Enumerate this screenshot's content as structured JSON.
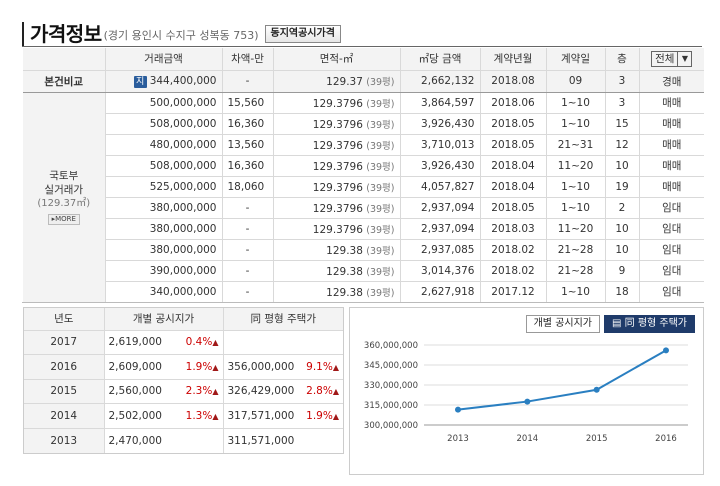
{
  "header": {
    "title": "가격정보",
    "address": "(경기 용인시 수지구 성복동 753)",
    "nearby_button": "동지역공시가격"
  },
  "main_table": {
    "columns": [
      "거래금액",
      "차액-만",
      "면적-㎡",
      "㎡당 금액",
      "계약년월",
      "계약일",
      "층"
    ],
    "filter_value": "전체",
    "subject_row": {
      "label": "본건비교",
      "badge": "지",
      "amount": "344,400,000",
      "diff": "-",
      "area": "129.37",
      "pyeong": "(39평)",
      "per_m2": "2,662,132",
      "ym": "2018.08",
      "day": "09",
      "floor": "3",
      "type": "경매"
    },
    "group_label_1": "국토부",
    "group_label_2": "실거래가",
    "group_area": "(129.37㎡)",
    "more_label": "MORE",
    "rows": [
      {
        "amount": "500,000,000",
        "diff": "15,560",
        "area": "129.3796",
        "pyeong": "(39평)",
        "per_m2": "3,864,597",
        "ym": "2018.06",
        "day": "1~10",
        "floor": "3",
        "type": "매매"
      },
      {
        "amount": "508,000,000",
        "diff": "16,360",
        "area": "129.3796",
        "pyeong": "(39평)",
        "per_m2": "3,926,430",
        "ym": "2018.05",
        "day": "1~10",
        "floor": "15",
        "type": "매매"
      },
      {
        "amount": "480,000,000",
        "diff": "13,560",
        "area": "129.3796",
        "pyeong": "(39평)",
        "per_m2": "3,710,013",
        "ym": "2018.05",
        "day": "21~31",
        "floor": "12",
        "type": "매매"
      },
      {
        "amount": "508,000,000",
        "diff": "16,360",
        "area": "129.3796",
        "pyeong": "(39평)",
        "per_m2": "3,926,430",
        "ym": "2018.04",
        "day": "11~20",
        "floor": "10",
        "type": "매매"
      },
      {
        "amount": "525,000,000",
        "diff": "18,060",
        "area": "129.3796",
        "pyeong": "(39평)",
        "per_m2": "4,057,827",
        "ym": "2018.04",
        "day": "1~10",
        "floor": "19",
        "type": "매매"
      },
      {
        "amount": "380,000,000",
        "diff": "-",
        "area": "129.3796",
        "pyeong": "(39평)",
        "per_m2": "2,937,094",
        "ym": "2018.05",
        "day": "1~10",
        "floor": "2",
        "type": "임대"
      },
      {
        "amount": "380,000,000",
        "diff": "-",
        "area": "129.3796",
        "pyeong": "(39평)",
        "per_m2": "2,937,094",
        "ym": "2018.03",
        "day": "11~20",
        "floor": "10",
        "type": "임대"
      },
      {
        "amount": "380,000,000",
        "diff": "-",
        "area": "129.38",
        "pyeong": "(39평)",
        "per_m2": "2,937,085",
        "ym": "2018.02",
        "day": "21~28",
        "floor": "10",
        "type": "임대"
      },
      {
        "amount": "390,000,000",
        "diff": "-",
        "area": "129.38",
        "pyeong": "(39평)",
        "per_m2": "3,014,376",
        "ym": "2018.02",
        "day": "21~28",
        "floor": "9",
        "type": "임대"
      },
      {
        "amount": "340,000,000",
        "diff": "-",
        "area": "129.38",
        "pyeong": "(39평)",
        "per_m2": "2,627,918",
        "ym": "2017.12",
        "day": "1~10",
        "floor": "18",
        "type": "임대"
      }
    ]
  },
  "price_table": {
    "columns": [
      "년도",
      "개별 공시지가",
      "同 평형 주택가"
    ],
    "rows": [
      {
        "year": "2017",
        "land": "2,619,000",
        "land_pct": "0.4%",
        "land_up": true,
        "house": "",
        "house_pct": "",
        "house_up": false
      },
      {
        "year": "2016",
        "land": "2,609,000",
        "land_pct": "1.9%",
        "land_up": true,
        "house": "356,000,000",
        "house_pct": "9.1%",
        "house_up": true
      },
      {
        "year": "2015",
        "land": "2,560,000",
        "land_pct": "2.3%",
        "land_up": true,
        "house": "326,429,000",
        "house_pct": "2.8%",
        "house_up": true
      },
      {
        "year": "2014",
        "land": "2,502,000",
        "land_pct": "1.3%",
        "land_up": true,
        "house": "317,571,000",
        "house_pct": "1.9%",
        "house_up": true
      },
      {
        "year": "2013",
        "land": "2,470,000",
        "land_pct": "",
        "land_up": false,
        "house": "311,571,000",
        "house_pct": "",
        "house_up": false
      }
    ]
  },
  "chart_tabs": {
    "tab1": "개별 공시지가",
    "tab2": "同 평형 주택가"
  },
  "colors": {
    "line": "#2a7fc1",
    "up_arrow": "#a01818",
    "active_tab": "#1f3b6a"
  },
  "chart_data": {
    "type": "line",
    "x": [
      "2013",
      "2014",
      "2015",
      "2016"
    ],
    "series": [
      {
        "values": [
          311571000,
          317571000,
          326429000,
          356000000
        ]
      }
    ],
    "yticks": [
      "360,000,000",
      "345,000,000",
      "330,000,000",
      "315,000,000",
      "300,000,000"
    ],
    "ylim": [
      300000000,
      360000000
    ],
    "grid": true
  }
}
